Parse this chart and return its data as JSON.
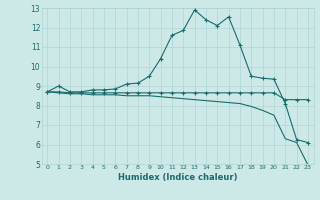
{
  "xlabel": "Humidex (Indice chaleur)",
  "xlim": [
    -0.5,
    23.5
  ],
  "ylim": [
    5,
    13
  ],
  "xticks": [
    0,
    1,
    2,
    3,
    4,
    5,
    6,
    7,
    8,
    9,
    10,
    11,
    12,
    13,
    14,
    15,
    16,
    17,
    18,
    19,
    20,
    21,
    22,
    23
  ],
  "yticks": [
    5,
    6,
    7,
    8,
    9,
    10,
    11,
    12,
    13
  ],
  "bg_color": "#cce9e8",
  "grid_color": "#b0d4d3",
  "line_color": "#1a6b6b",
  "line1_x": [
    0,
    1,
    2,
    3,
    4,
    5,
    6,
    7,
    8,
    9,
    10,
    11,
    12,
    13,
    14,
    15,
    16,
    17,
    18,
    19,
    20,
    21,
    22,
    23
  ],
  "line1_y": [
    8.7,
    9.0,
    8.7,
    8.7,
    8.8,
    8.8,
    8.85,
    9.1,
    9.15,
    9.5,
    10.4,
    11.6,
    11.85,
    12.9,
    12.4,
    12.1,
    12.55,
    11.1,
    9.5,
    9.4,
    9.35,
    8.1,
    6.25,
    6.1
  ],
  "line2_x": [
    0,
    1,
    2,
    3,
    4,
    5,
    6,
    7,
    8,
    9,
    10,
    11,
    12,
    13,
    14,
    15,
    16,
    17,
    18,
    19,
    20,
    21,
    22,
    23
  ],
  "line2_y": [
    8.7,
    8.7,
    8.65,
    8.65,
    8.65,
    8.65,
    8.65,
    8.65,
    8.65,
    8.65,
    8.65,
    8.65,
    8.65,
    8.65,
    8.65,
    8.65,
    8.65,
    8.65,
    8.65,
    8.65,
    8.65,
    8.3,
    8.3,
    8.3
  ],
  "line3_x": [
    0,
    1,
    2,
    3,
    4,
    5,
    6,
    7,
    8,
    9,
    10,
    11,
    12,
    13,
    14,
    15,
    16,
    17,
    18,
    19,
    20,
    21,
    22,
    23
  ],
  "line3_y": [
    8.7,
    8.65,
    8.6,
    8.6,
    8.55,
    8.55,
    8.55,
    8.5,
    8.5,
    8.5,
    8.45,
    8.4,
    8.35,
    8.3,
    8.25,
    8.2,
    8.15,
    8.1,
    7.95,
    7.75,
    7.5,
    6.3,
    6.1,
    4.95
  ],
  "marker": "+"
}
